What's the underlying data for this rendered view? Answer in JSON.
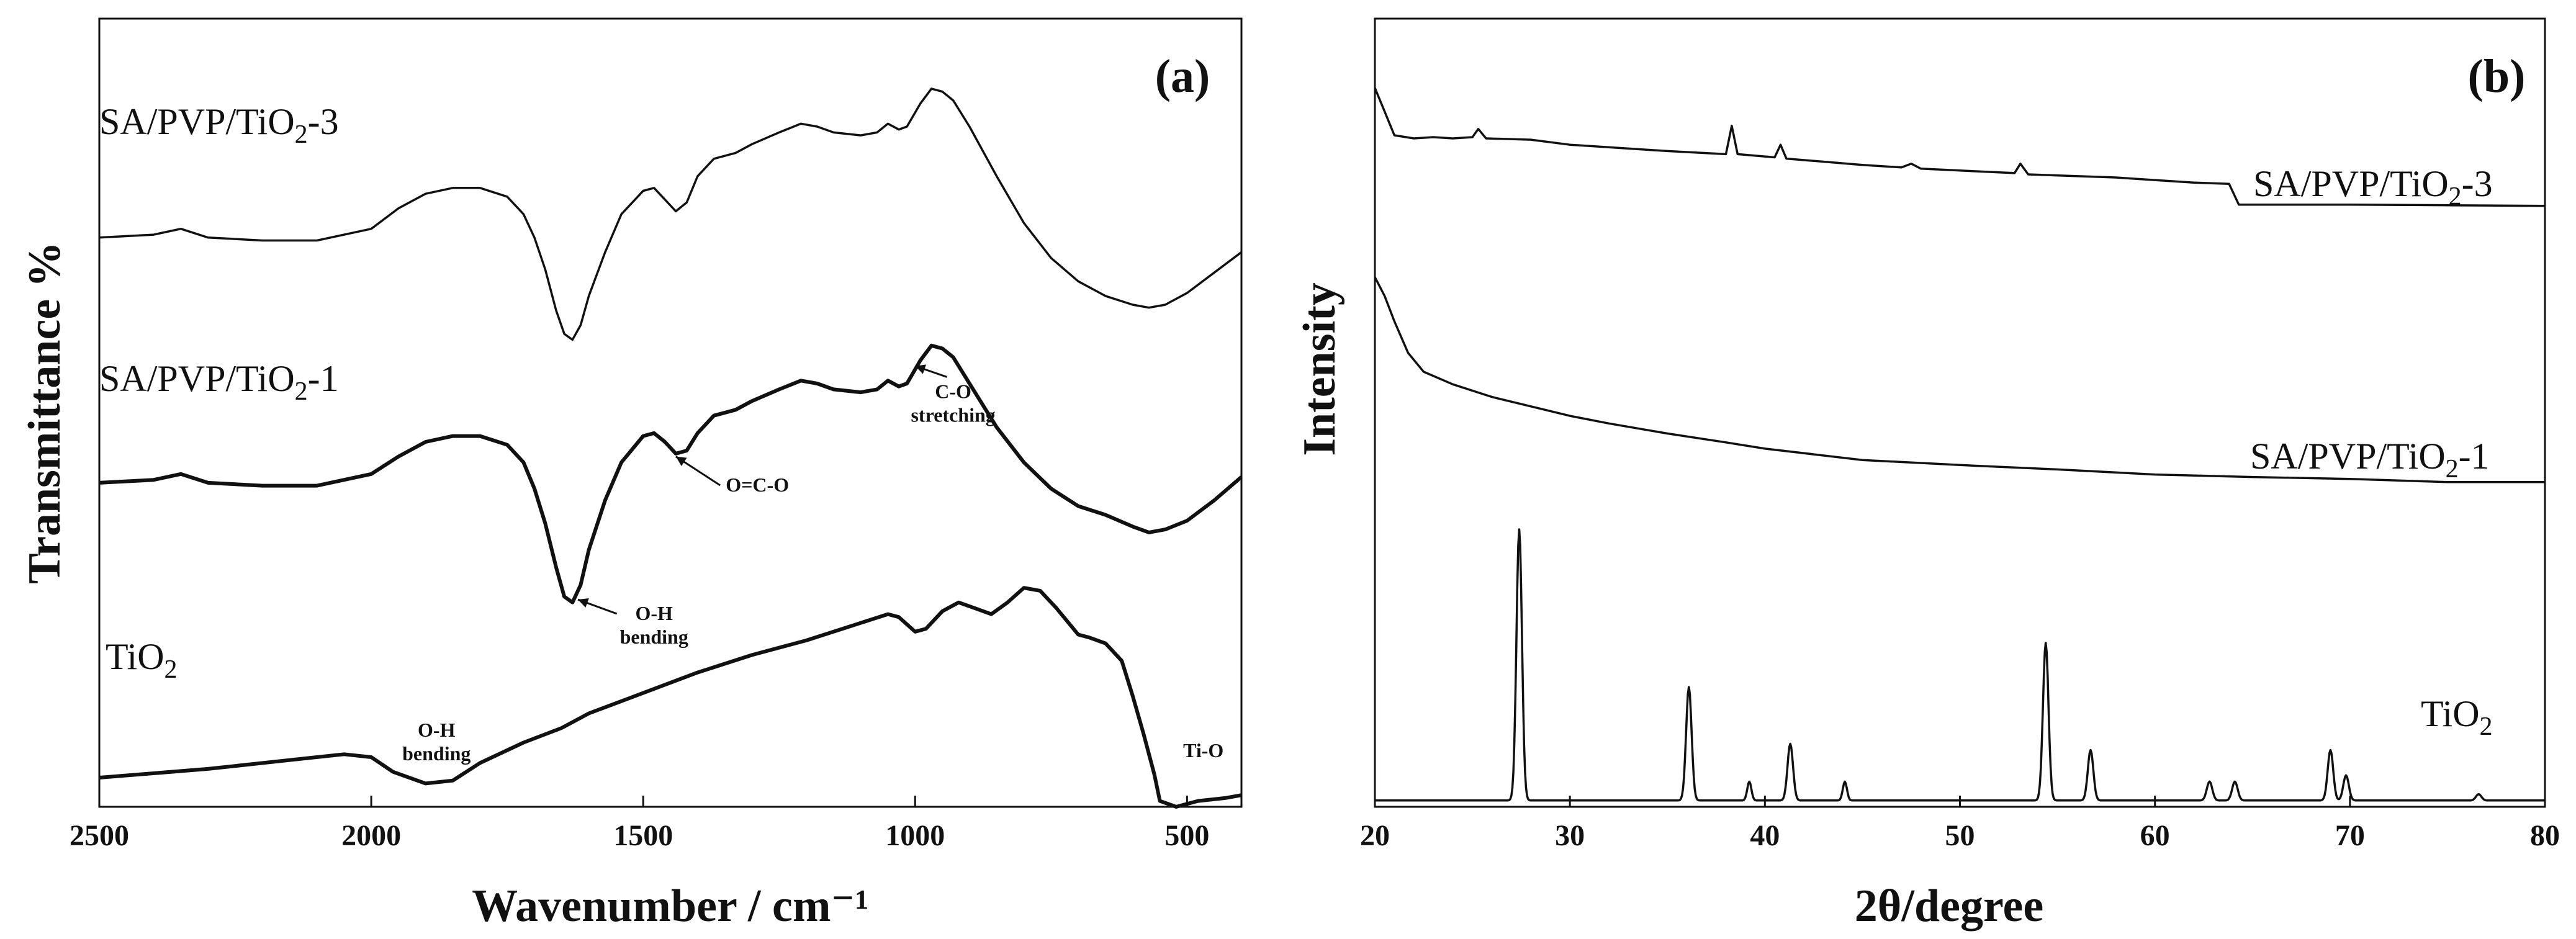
{
  "chart_data": [
    {
      "id": "a",
      "type": "line",
      "panel_label": "(a)",
      "xlabel": "Wavenumber / cm⁻¹",
      "ylabel": "Transmittance %",
      "xlim": [
        2500,
        400
      ],
      "x_reversed": true,
      "ylim": [
        -0.1,
        2.6
      ],
      "xticks": [
        2500,
        2000,
        1500,
        1000,
        500
      ],
      "yticks": [],
      "series": [
        {
          "name": "TiO₂",
          "label_parts": [
            "TiO",
            "2",
            ""
          ],
          "points": [
            [
              2500,
              0
            ],
            [
              2300,
              0.03
            ],
            [
              2150,
              0.06
            ],
            [
              2050,
              0.08
            ],
            [
              2000,
              0.07
            ],
            [
              1960,
              0.02
            ],
            [
              1900,
              -0.02
            ],
            [
              1850,
              -0.01
            ],
            [
              1800,
              0.05
            ],
            [
              1720,
              0.12
            ],
            [
              1650,
              0.17
            ],
            [
              1600,
              0.22
            ],
            [
              1500,
              0.29
            ],
            [
              1400,
              0.36
            ],
            [
              1300,
              0.42
            ],
            [
              1200,
              0.47
            ],
            [
              1100,
              0.53
            ],
            [
              1050,
              0.56
            ],
            [
              1030,
              0.55
            ],
            [
              1000,
              0.5
            ],
            [
              980,
              0.51
            ],
            [
              950,
              0.57
            ],
            [
              920,
              0.6
            ],
            [
              890,
              0.58
            ],
            [
              860,
              0.56
            ],
            [
              830,
              0.6
            ],
            [
              800,
              0.65
            ],
            [
              770,
              0.64
            ],
            [
              740,
              0.58
            ],
            [
              700,
              0.49
            ],
            [
              680,
              0.48
            ],
            [
              650,
              0.46
            ],
            [
              620,
              0.4
            ],
            [
              600,
              0.28
            ],
            [
              580,
              0.15
            ],
            [
              560,
              0.01
            ],
            [
              550,
              -0.08
            ],
            [
              520,
              -0.1
            ],
            [
              480,
              -0.08
            ],
            [
              430,
              -0.07
            ],
            [
              400,
              -0.06
            ]
          ]
        },
        {
          "name": "SA/PVP/TiO₂-1",
          "label_parts": [
            "SA/PVP/TiO",
            "2",
            "-1"
          ],
          "points": [
            [
              2500,
              1.01
            ],
            [
              2400,
              1.02
            ],
            [
              2350,
              1.04
            ],
            [
              2300,
              1.01
            ],
            [
              2200,
              1.0
            ],
            [
              2100,
              1.0
            ],
            [
              2000,
              1.04
            ],
            [
              1950,
              1.1
            ],
            [
              1900,
              1.15
            ],
            [
              1850,
              1.17
            ],
            [
              1800,
              1.17
            ],
            [
              1750,
              1.14
            ],
            [
              1720,
              1.08
            ],
            [
              1700,
              0.99
            ],
            [
              1680,
              0.87
            ],
            [
              1660,
              0.72
            ],
            [
              1645,
              0.62
            ],
            [
              1630,
              0.6
            ],
            [
              1615,
              0.66
            ],
            [
              1600,
              0.78
            ],
            [
              1570,
              0.95
            ],
            [
              1540,
              1.08
            ],
            [
              1500,
              1.17
            ],
            [
              1480,
              1.18
            ],
            [
              1460,
              1.15
            ],
            [
              1440,
              1.11
            ],
            [
              1420,
              1.12
            ],
            [
              1400,
              1.18
            ],
            [
              1370,
              1.24
            ],
            [
              1330,
              1.26
            ],
            [
              1300,
              1.29
            ],
            [
              1250,
              1.33
            ],
            [
              1210,
              1.36
            ],
            [
              1180,
              1.35
            ],
            [
              1150,
              1.33
            ],
            [
              1100,
              1.32
            ],
            [
              1070,
              1.33
            ],
            [
              1050,
              1.36
            ],
            [
              1030,
              1.34
            ],
            [
              1015,
              1.35
            ],
            [
              990,
              1.43
            ],
            [
              970,
              1.48
            ],
            [
              950,
              1.47
            ],
            [
              930,
              1.44
            ],
            [
              900,
              1.35
            ],
            [
              850,
              1.2
            ],
            [
              800,
              1.08
            ],
            [
              750,
              0.99
            ],
            [
              700,
              0.93
            ],
            [
              650,
              0.9
            ],
            [
              600,
              0.86
            ],
            [
              570,
              0.84
            ],
            [
              540,
              0.85
            ],
            [
              500,
              0.88
            ],
            [
              450,
              0.95
            ],
            [
              400,
              1.03
            ]
          ]
        },
        {
          "name": "SA/PVP/TiO₂-3",
          "label_parts": [
            "SA/PVP/TiO",
            "2",
            "-3"
          ],
          "points": [
            [
              2500,
              1.85
            ],
            [
              2400,
              1.86
            ],
            [
              2350,
              1.88
            ],
            [
              2300,
              1.85
            ],
            [
              2200,
              1.84
            ],
            [
              2100,
              1.84
            ],
            [
              2000,
              1.88
            ],
            [
              1950,
              1.95
            ],
            [
              1900,
              2.0
            ],
            [
              1850,
              2.02
            ],
            [
              1800,
              2.02
            ],
            [
              1750,
              1.99
            ],
            [
              1720,
              1.93
            ],
            [
              1700,
              1.85
            ],
            [
              1680,
              1.74
            ],
            [
              1660,
              1.6
            ],
            [
              1645,
              1.52
            ],
            [
              1630,
              1.5
            ],
            [
              1615,
              1.55
            ],
            [
              1600,
              1.65
            ],
            [
              1570,
              1.8
            ],
            [
              1540,
              1.93
            ],
            [
              1500,
              2.01
            ],
            [
              1480,
              2.02
            ],
            [
              1460,
              1.98
            ],
            [
              1440,
              1.94
            ],
            [
              1420,
              1.97
            ],
            [
              1400,
              2.06
            ],
            [
              1370,
              2.12
            ],
            [
              1330,
              2.14
            ],
            [
              1300,
              2.17
            ],
            [
              1250,
              2.21
            ],
            [
              1210,
              2.24
            ],
            [
              1180,
              2.23
            ],
            [
              1150,
              2.21
            ],
            [
              1100,
              2.2
            ],
            [
              1070,
              2.21
            ],
            [
              1050,
              2.24
            ],
            [
              1030,
              2.22
            ],
            [
              1015,
              2.23
            ],
            [
              990,
              2.31
            ],
            [
              970,
              2.36
            ],
            [
              950,
              2.35
            ],
            [
              930,
              2.32
            ],
            [
              900,
              2.23
            ],
            [
              850,
              2.06
            ],
            [
              800,
              1.9
            ],
            [
              750,
              1.78
            ],
            [
              700,
              1.7
            ],
            [
              650,
              1.65
            ],
            [
              600,
              1.62
            ],
            [
              570,
              1.61
            ],
            [
              540,
              1.62
            ],
            [
              500,
              1.66
            ],
            [
              450,
              1.73
            ],
            [
              400,
              1.8
            ]
          ]
        }
      ],
      "annotations": [
        {
          "name": "annotation-oh-bending-tio2",
          "lines": [
            "O-H",
            "bending"
          ],
          "x": 1880,
          "y": 0.14,
          "arrow_to": null
        },
        {
          "name": "annotation-ti-o",
          "lines": [
            "Ti-O"
          ],
          "x": 470,
          "y": 0.07,
          "arrow_to": null
        },
        {
          "name": "annotation-oh-bending",
          "lines": [
            "O-H",
            "bending"
          ],
          "x": 1480,
          "y": 0.54,
          "arrow_to": [
            1620,
            0.61
          ]
        },
        {
          "name": "annotation-o-c-o",
          "lines": [
            "O=C-O"
          ],
          "x": 1290,
          "y": 0.98,
          "arrow_to": [
            1440,
            1.1
          ]
        },
        {
          "name": "annotation-c-o-stretching",
          "lines": [
            "C-O",
            "stretching"
          ],
          "x": 930,
          "y": 1.3,
          "arrow_to": [
            1000,
            1.41
          ]
        }
      ]
    },
    {
      "id": "b",
      "type": "line",
      "panel_label": "(b)",
      "xlabel": "2θ/degree",
      "ylabel": "Intensity",
      "xlim": [
        20,
        80
      ],
      "ylim": [
        0,
        1.25
      ],
      "xticks": [
        20,
        30,
        40,
        50,
        60,
        70,
        80
      ],
      "yticks": [],
      "series": [
        {
          "name": "TiO₂",
          "label_parts": [
            "TiO",
            "2",
            ""
          ],
          "peaks": [
            [
              27.4,
              0.43,
              0.2
            ],
            [
              36.1,
              0.18,
              0.2
            ],
            [
              39.2,
              0.03,
              0.15
            ],
            [
              41.3,
              0.09,
              0.2
            ],
            [
              44.1,
              0.03,
              0.15
            ],
            [
              54.4,
              0.25,
              0.2
            ],
            [
              56.7,
              0.08,
              0.2
            ],
            [
              62.8,
              0.03,
              0.2
            ],
            [
              64.1,
              0.03,
              0.2
            ],
            [
              69.0,
              0.08,
              0.2
            ],
            [
              69.8,
              0.04,
              0.2
            ],
            [
              76.6,
              0.01,
              0.2
            ]
          ],
          "baseline": 0.01
        },
        {
          "name": "SA/PVP/TiO₂-1",
          "label_parts": [
            "SA/PVP/TiO",
            "2",
            "-1"
          ],
          "points": [
            [
              20,
              0.84
            ],
            [
              20.5,
              0.81
            ],
            [
              21,
              0.77
            ],
            [
              21.7,
              0.72
            ],
            [
              22.5,
              0.69
            ],
            [
              24,
              0.67
            ],
            [
              26,
              0.65
            ],
            [
              28,
              0.635
            ],
            [
              30,
              0.62
            ],
            [
              32,
              0.608
            ],
            [
              35,
              0.592
            ],
            [
              38,
              0.578
            ],
            [
              40,
              0.568
            ],
            [
              45,
              0.55
            ],
            [
              50,
              0.542
            ],
            [
              55,
              0.535
            ],
            [
              60,
              0.527
            ],
            [
              65,
              0.523
            ],
            [
              70,
              0.52
            ],
            [
              75,
              0.515
            ],
            [
              80,
              0.515
            ]
          ]
        },
        {
          "name": "SA/PVP/TiO₂-3",
          "label_parts": [
            "SA/PVP/TiO",
            "2",
            "-3"
          ],
          "points": [
            [
              20,
              1.14
            ],
            [
              20.4,
              1.11
            ],
            [
              20.8,
              1.08
            ],
            [
              21,
              1.065
            ],
            [
              22,
              1.06
            ],
            [
              23,
              1.062
            ],
            [
              24,
              1.06
            ],
            [
              25,
              1.062
            ],
            [
              25.3,
              1.075
            ],
            [
              25.7,
              1.06
            ],
            [
              28,
              1.058
            ],
            [
              30,
              1.05
            ],
            [
              35,
              1.04
            ],
            [
              38,
              1.035
            ],
            [
              38.3,
              1.08
            ],
            [
              38.6,
              1.035
            ],
            [
              40.5,
              1.03
            ],
            [
              40.8,
              1.05
            ],
            [
              41.1,
              1.028
            ],
            [
              45,
              1.018
            ],
            [
              47,
              1.014
            ],
            [
              47.5,
              1.02
            ],
            [
              48,
              1.012
            ],
            [
              52.8,
              1.005
            ],
            [
              53.1,
              1.02
            ],
            [
              53.5,
              1.003
            ],
            [
              58,
              0.998
            ],
            [
              62,
              0.99
            ],
            [
              63.8,
              0.988
            ],
            [
              64.3,
              0.955
            ],
            [
              66,
              0.955
            ],
            [
              70,
              0.955
            ],
            [
              75,
              0.954
            ],
            [
              80,
              0.953
            ]
          ]
        }
      ]
    }
  ]
}
